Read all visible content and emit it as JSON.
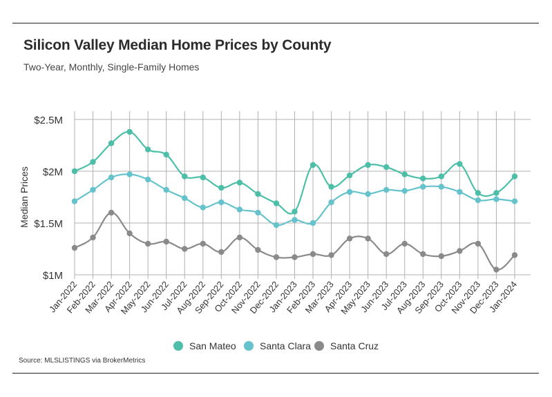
{
  "title": "Silicon Valley Median Home Prices by County",
  "subtitle": "Two-Year, Monthly, Single-Family Homes",
  "source": "Source:  MLSLISTINGS via BrokerMetrics",
  "colors": {
    "san_mateo": "#4dbfa8",
    "santa_clara": "#66c3cc",
    "santa_cruz": "#8a8a8a",
    "grid": "#b0b0b0"
  },
  "chart_data": {
    "type": "line",
    "title": "Silicon Valley Median Home Prices by County",
    "subtitle": "Two-Year, Monthly, Single-Family Homes",
    "xlabel": "",
    "ylabel": "Median Prices",
    "ylim": [
      1.0,
      2.5
    ],
    "yticks": [
      1.0,
      1.5,
      2.0,
      2.5
    ],
    "ytick_labels": [
      "$1M",
      "$1.5M",
      "$2M",
      "$2.5M"
    ],
    "categories": [
      "Jan-2022",
      "Feb-2022",
      "Mar-2022",
      "Apr-2022",
      "May-2022",
      "Jun-2022",
      "Jul-2022",
      "Aug-2022",
      "Sep-2022",
      "Oct-2022",
      "Nov-2022",
      "Dec-2022",
      "Jan-2023",
      "Feb-2023",
      "Mar-2023",
      "Apr-2023",
      "May-2023",
      "Jun-2023",
      "Jul-2023",
      "Aug-2023",
      "Sep-2023",
      "Oct-2023",
      "Nov-2023",
      "Dec-2023",
      "Jan-2024"
    ],
    "series": [
      {
        "name": "San Mateo",
        "color": "#4dbfa8",
        "values": [
          2.0,
          2.09,
          2.27,
          2.38,
          2.21,
          2.16,
          1.95,
          1.94,
          1.84,
          1.89,
          1.78,
          1.69,
          1.61,
          2.06,
          1.85,
          1.96,
          2.06,
          2.04,
          1.97,
          1.93,
          1.95,
          2.07,
          1.79,
          1.79,
          1.95
        ]
      },
      {
        "name": "Santa Clara",
        "color": "#66c3cc",
        "values": [
          1.71,
          1.82,
          1.94,
          1.97,
          1.92,
          1.82,
          1.74,
          1.65,
          1.7,
          1.63,
          1.6,
          1.48,
          1.53,
          1.5,
          1.7,
          1.8,
          1.78,
          1.82,
          1.81,
          1.85,
          1.85,
          1.8,
          1.72,
          1.73,
          1.71
        ]
      },
      {
        "name": "Santa Cruz",
        "color": "#8a8a8a",
        "values": [
          1.26,
          1.36,
          1.6,
          1.4,
          1.3,
          1.32,
          1.25,
          1.3,
          1.22,
          1.36,
          1.24,
          1.17,
          1.17,
          1.2,
          1.19,
          1.35,
          1.35,
          1.2,
          1.3,
          1.2,
          1.18,
          1.23,
          1.3,
          1.05,
          1.19
        ]
      }
    ],
    "legend": "bottom-center"
  }
}
